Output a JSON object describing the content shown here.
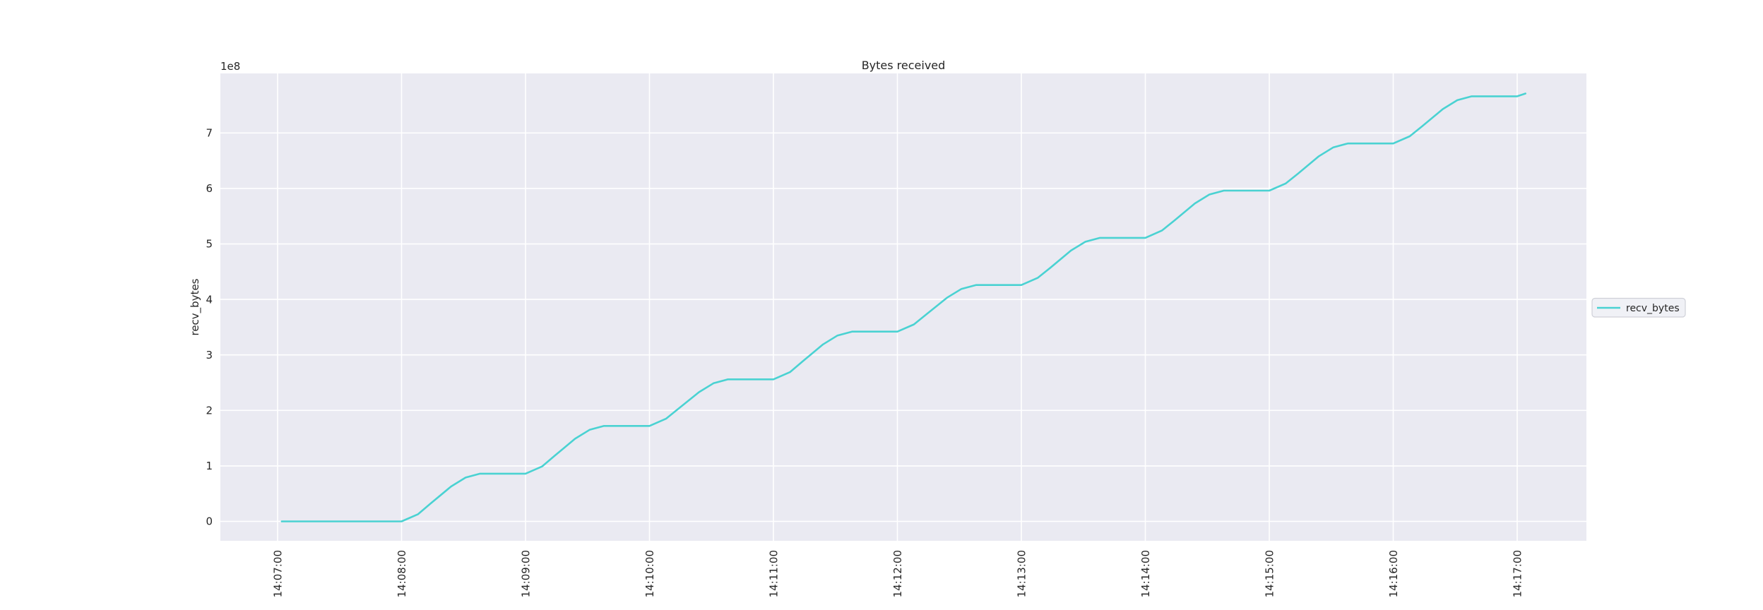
{
  "figure": {
    "background_color": "#ffffff",
    "plot_background_color": "#eaeaf2",
    "grid_color": "#ffffff",
    "text_color": "#262626"
  },
  "chart_data": {
    "type": "line",
    "title": "Bytes received",
    "xlabel": "",
    "ylabel": "recv_bytes",
    "y_offset_label": "1e8",
    "grid": true,
    "legend_position": "right-outside",
    "x_ticks": [
      "14:07:00",
      "14:08:00",
      "14:09:00",
      "14:10:00",
      "14:11:00",
      "14:12:00",
      "14:13:00",
      "14:14:00",
      "14:15:00",
      "14:16:00",
      "14:17:00"
    ],
    "y_ticks": [
      0,
      1,
      2,
      3,
      4,
      5,
      6,
      7
    ],
    "y_unit": "1e8 bytes",
    "ylim_1e8": [
      -0.35,
      8.07
    ],
    "xlim": [
      "14:06:21",
      "14:17:34"
    ],
    "series": [
      {
        "name": "recv_bytes",
        "color": "#4ad2d2",
        "value_scale": 100000000,
        "points": [
          [
            "14:07:02",
            0.0
          ],
          [
            "14:08:00",
            0.0
          ],
          [
            "14:08:08",
            0.13
          ],
          [
            "14:08:14",
            0.32
          ],
          [
            "14:08:24",
            0.63
          ],
          [
            "14:08:31",
            0.79
          ],
          [
            "14:08:38",
            0.86
          ],
          [
            "14:09:00",
            0.86
          ],
          [
            "14:09:08",
            0.99
          ],
          [
            "14:09:14",
            1.18
          ],
          [
            "14:09:24",
            1.49
          ],
          [
            "14:09:31",
            1.65
          ],
          [
            "14:09:38",
            1.72
          ],
          [
            "14:10:00",
            1.72
          ],
          [
            "14:10:08",
            1.85
          ],
          [
            "14:10:14",
            2.03
          ],
          [
            "14:10:24",
            2.33
          ],
          [
            "14:10:31",
            2.49
          ],
          [
            "14:10:38",
            2.56
          ],
          [
            "14:11:00",
            2.56
          ],
          [
            "14:11:08",
            2.69
          ],
          [
            "14:11:14",
            2.88
          ],
          [
            "14:11:24",
            3.19
          ],
          [
            "14:11:31",
            3.35
          ],
          [
            "14:11:38",
            3.42
          ],
          [
            "14:12:00",
            3.42
          ],
          [
            "14:12:08",
            3.55
          ],
          [
            "14:12:14",
            3.73
          ],
          [
            "14:12:24",
            4.03
          ],
          [
            "14:12:31",
            4.19
          ],
          [
            "14:12:38",
            4.26
          ],
          [
            "14:13:00",
            4.26
          ],
          [
            "14:13:08",
            4.39
          ],
          [
            "14:13:14",
            4.57
          ],
          [
            "14:13:24",
            4.88
          ],
          [
            "14:13:31",
            5.04
          ],
          [
            "14:13:38",
            5.11
          ],
          [
            "14:14:00",
            5.11
          ],
          [
            "14:14:08",
            5.24
          ],
          [
            "14:14:14",
            5.42
          ],
          [
            "14:14:24",
            5.73
          ],
          [
            "14:14:31",
            5.89
          ],
          [
            "14:14:38",
            5.96
          ],
          [
            "14:15:00",
            5.96
          ],
          [
            "14:15:08",
            6.09
          ],
          [
            "14:15:14",
            6.27
          ],
          [
            "14:15:24",
            6.58
          ],
          [
            "14:15:31",
            6.74
          ],
          [
            "14:15:38",
            6.81
          ],
          [
            "14:16:00",
            6.81
          ],
          [
            "14:16:08",
            6.94
          ],
          [
            "14:16:14",
            7.12
          ],
          [
            "14:16:24",
            7.43
          ],
          [
            "14:16:31",
            7.59
          ],
          [
            "14:16:38",
            7.66
          ],
          [
            "14:17:00",
            7.66
          ],
          [
            "14:17:04",
            7.71
          ]
        ]
      }
    ]
  },
  "legend": {
    "entry_label": "recv_bytes",
    "box_fill": "#f0f1f6",
    "box_border": "#cfd0d8"
  }
}
